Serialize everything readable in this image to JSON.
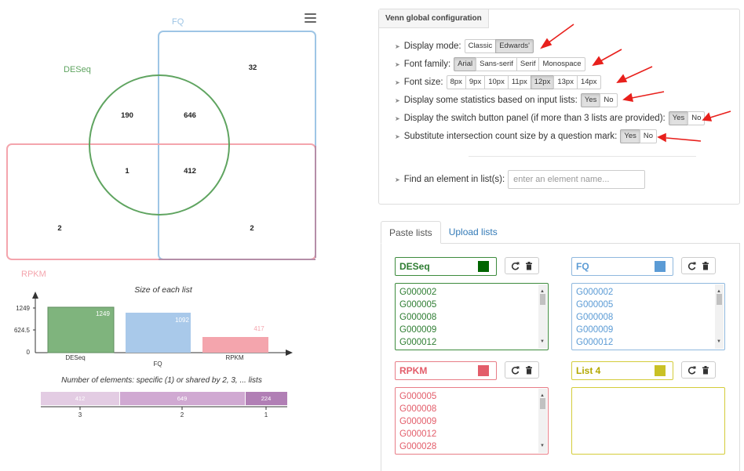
{
  "venn": {
    "labels": {
      "deseq": "DESeq",
      "fq": "FQ",
      "rpkm": "RPKM"
    },
    "counts": {
      "fq_only": "32",
      "deseq_only": "190",
      "deseq_fq": "646",
      "all_three": "1",
      "fq_rpkm": "412",
      "rpkm_only": "2",
      "rpkm_fq": "2"
    },
    "colors": {
      "deseq": "#5fa460",
      "fq": "#9ec5e5",
      "rpkm": "#f4a5ad",
      "rpkm_fq_border": "#b58ea8"
    }
  },
  "size_chart": {
    "title": "Size of each list",
    "yticks": [
      "1249",
      "624.5",
      "0"
    ],
    "bars": [
      {
        "label": "DESeq",
        "value": "1249",
        "color": "#7fb47d"
      },
      {
        "label": "FQ",
        "value": "1092",
        "color": "#a9c9ea"
      },
      {
        "label": "RPKM",
        "value": "417",
        "color": "#f4a5ad"
      }
    ]
  },
  "shared_chart": {
    "title": "Number of elements: specific (1) or shared by 2, 3, ... lists",
    "segments": [
      {
        "value": "412",
        "label": "3",
        "color": "#e3cce3"
      },
      {
        "value": "649",
        "label": "2",
        "color": "#d0a9d2"
      },
      {
        "value": "224",
        "label": "1",
        "color": "#b17fb5"
      }
    ]
  },
  "chart_data": [
    {
      "type": "bar",
      "title": "Size of each list",
      "categories": [
        "DESeq",
        "FQ",
        "RPKM"
      ],
      "values": [
        1249,
        1092,
        417
      ],
      "ylim": [
        0,
        1249
      ]
    },
    {
      "type": "bar",
      "title": "Number of elements: specific (1) or shared by 2, 3, ... lists",
      "categories": [
        "3",
        "2",
        "1"
      ],
      "values": [
        412,
        649,
        224
      ]
    }
  ],
  "config": {
    "tab": "Venn global configuration",
    "display_mode": {
      "label": "Display mode:",
      "options": [
        "Classic",
        "Edwards'"
      ],
      "active": "Edwards'"
    },
    "font_family": {
      "label": "Font family:",
      "options": [
        "Arial",
        "Sans-serif",
        "Serif",
        "Monospace"
      ],
      "active": "Arial"
    },
    "font_size": {
      "label": "Font size:",
      "options": [
        "8px",
        "9px",
        "10px",
        "11px",
        "12px",
        "13px",
        "14px"
      ],
      "active": "12px"
    },
    "stats": {
      "label": "Display some statistics based on input lists:",
      "options": [
        "Yes",
        "No"
      ],
      "active": "Yes"
    },
    "switch_panel": {
      "label": "Display the switch button panel (if more than 3 lists are provided):",
      "options": [
        "Yes",
        "No"
      ],
      "active": "Yes"
    },
    "question_mark": {
      "label": "Substitute intersection count size by a question mark:",
      "options": [
        "Yes",
        "No"
      ],
      "active": "Yes"
    },
    "find": {
      "label": "Find an element in list(s):",
      "placeholder": "enter an element name..."
    }
  },
  "lists_panel": {
    "tabs": [
      "Paste lists",
      "Upload lists"
    ],
    "lists": [
      {
        "name": "DESeq",
        "color": "#006400",
        "border": "#3d8b3d",
        "text_color": "#2e7d32",
        "items": [
          "G000002",
          "G000005",
          "G000008",
          "G000009",
          "G000012"
        ]
      },
      {
        "name": "FQ",
        "color": "#5b9bd5",
        "border": "#8fb8de",
        "text_color": "#5b9bd5",
        "items": [
          "G000002",
          "G000005",
          "G000008",
          "G000009",
          "G000012"
        ]
      },
      {
        "name": "RPKM",
        "color": "#e35d6a",
        "border": "#e87d87",
        "text_color": "#e35d6a",
        "items": [
          "G000005",
          "G000008",
          "G000009",
          "G000012",
          "G000028"
        ]
      },
      {
        "name": "List 4",
        "color": "#c9c125",
        "border": "#d4cc3a",
        "text_color": "#b3a800",
        "items": []
      }
    ]
  }
}
